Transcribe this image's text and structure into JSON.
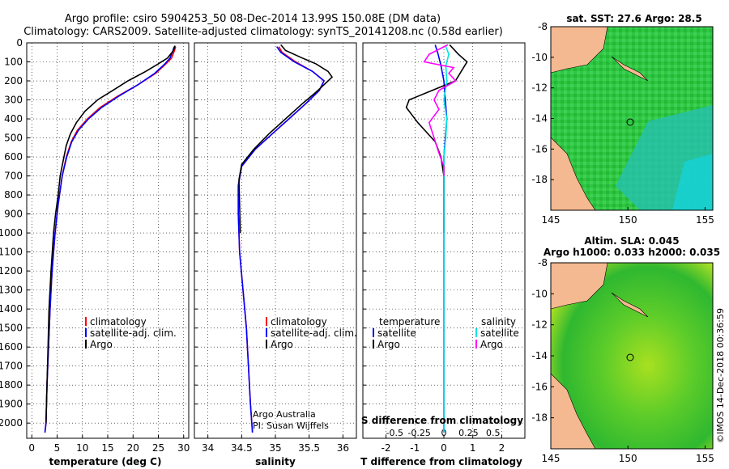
{
  "title": {
    "line1": "Argo profile: csiro 5904253_50 08-Dec-2014 13.99S 150.08E (DM data)",
    "line2": "Climatology: CARS2009. Satellite-adjusted climatology: synTS_20141208.nc (0.58d earlier)"
  },
  "colors": {
    "climatology": "#ff0000",
    "satellite": "#0000ff",
    "argo": "#000000",
    "s_satellite": "#00e5e5",
    "s_argo": "#ff00ff",
    "land": "#f4b990"
  },
  "chart_data": [
    {
      "type": "line",
      "id": "temperature",
      "xlabel": "temperature (deg C)",
      "ylabel": "",
      "xlim": [
        -1,
        31
      ],
      "ylim": [
        2080,
        0
      ],
      "xticks": [
        "0",
        "5",
        "10",
        "15",
        "20",
        "25",
        "30"
      ],
      "yticks": [
        "0",
        "100",
        "200",
        "300",
        "400",
        "500",
        "600",
        "700",
        "800",
        "900",
        "1000",
        "1100",
        "1200",
        "1300",
        "1400",
        "1500",
        "1600",
        "1700",
        "1800",
        "1900",
        "2000"
      ],
      "legend": [
        "climatology",
        "satellite-adj. clim.",
        "Argo"
      ],
      "series": [
        {
          "name": "climatology",
          "points": [
            [
              28.4,
              20
            ],
            [
              28.2,
              40
            ],
            [
              27.6,
              80
            ],
            [
              26.5,
              110
            ],
            [
              24.5,
              160
            ],
            [
              21,
              220
            ],
            [
              17,
              280
            ],
            [
              13.5,
              340
            ],
            [
              11,
              400
            ],
            [
              9,
              460
            ],
            [
              7.8,
              520
            ],
            [
              6.8,
              600
            ],
            [
              6,
              700
            ],
            [
              5.2,
              850
            ],
            [
              4.6,
              1000
            ],
            [
              4,
              1200
            ],
            [
              3.6,
              1400
            ],
            [
              3.3,
              1600
            ],
            [
              3,
              1800
            ],
            [
              2.8,
              2000
            ],
            [
              2.6,
              2050
            ]
          ]
        },
        {
          "name": "satellite-adj. clim.",
          "points": [
            [
              28.1,
              20
            ],
            [
              27.9,
              40
            ],
            [
              27.3,
              80
            ],
            [
              26.3,
              110
            ],
            [
              24.3,
              160
            ],
            [
              21,
              220
            ],
            [
              17.2,
              280
            ],
            [
              13.8,
              340
            ],
            [
              11.2,
              400
            ],
            [
              9.2,
              460
            ],
            [
              7.9,
              520
            ],
            [
              6.9,
              600
            ],
            [
              6,
              700
            ],
            [
              5.2,
              850
            ],
            [
              4.6,
              1000
            ],
            [
              4,
              1200
            ],
            [
              3.6,
              1400
            ],
            [
              3.3,
              1600
            ],
            [
              3,
              1800
            ],
            [
              2.8,
              2000
            ],
            [
              2.6,
              2050
            ]
          ]
        },
        {
          "name": "Argo",
          "points": [
            [
              28.3,
              15
            ],
            [
              28,
              40
            ],
            [
              26.8,
              80
            ],
            [
              25,
              110
            ],
            [
              22.5,
              150
            ],
            [
              19,
              200
            ],
            [
              16,
              250
            ],
            [
              13,
              300
            ],
            [
              10.5,
              360
            ],
            [
              8.8,
              420
            ],
            [
              7.6,
              480
            ],
            [
              6.8,
              540
            ],
            [
              6.2,
              620
            ],
            [
              5.6,
              700
            ],
            [
              5.2,
              800
            ],
            [
              4.7,
              900
            ],
            [
              4.3,
              1000
            ],
            [
              3.8,
              1200
            ],
            [
              3.4,
              1400
            ],
            [
              3.2,
              1600
            ],
            [
              3,
              1800
            ],
            [
              2.8,
              2000
            ]
          ]
        }
      ]
    },
    {
      "type": "line",
      "id": "salinity",
      "xlabel": "salinity",
      "ylabel": "",
      "xlim": [
        33.8,
        36.2
      ],
      "ylim": [
        2080,
        0
      ],
      "xticks": [
        "34",
        "34.5",
        "35",
        "35.5",
        "36"
      ],
      "legend": [
        "climatology",
        "satellite-adj. clim.",
        "Argo"
      ],
      "annotation": [
        "Argo Australia",
        "PI: Susan Wijffels"
      ],
      "series": [
        {
          "name": "climatology",
          "points": [
            [
              35.05,
              20
            ],
            [
              35.1,
              50
            ],
            [
              35.3,
              100
            ],
            [
              35.55,
              150
            ],
            [
              35.72,
              200
            ],
            [
              35.65,
              250
            ],
            [
              35.45,
              320
            ],
            [
              35.2,
              400
            ],
            [
              34.95,
              480
            ],
            [
              34.7,
              560
            ],
            [
              34.5,
              650
            ],
            [
              34.45,
              750
            ],
            [
              34.45,
              900
            ],
            [
              34.47,
              1100
            ],
            [
              34.52,
              1300
            ],
            [
              34.57,
              1500
            ],
            [
              34.6,
              1700
            ],
            [
              34.63,
              1900
            ],
            [
              34.66,
              2050
            ]
          ]
        },
        {
          "name": "satellite-adj. clim.",
          "points": [
            [
              35.02,
              20
            ],
            [
              35.08,
              50
            ],
            [
              35.28,
              100
            ],
            [
              35.55,
              150
            ],
            [
              35.72,
              200
            ],
            [
              35.65,
              250
            ],
            [
              35.45,
              320
            ],
            [
              35.2,
              400
            ],
            [
              34.95,
              480
            ],
            [
              34.7,
              560
            ],
            [
              34.5,
              650
            ],
            [
              34.45,
              750
            ],
            [
              34.45,
              900
            ],
            [
              34.47,
              1100
            ],
            [
              34.52,
              1300
            ],
            [
              34.57,
              1500
            ],
            [
              34.6,
              1700
            ],
            [
              34.63,
              1900
            ],
            [
              34.66,
              2050
            ]
          ]
        },
        {
          "name": "Argo",
          "points": [
            [
              35.08,
              10
            ],
            [
              35.15,
              40
            ],
            [
              35.4,
              80
            ],
            [
              35.6,
              110
            ],
            [
              35.78,
              150
            ],
            [
              35.84,
              180
            ],
            [
              35.75,
              210
            ],
            [
              35.6,
              260
            ],
            [
              35.4,
              320
            ],
            [
              35.15,
              400
            ],
            [
              34.9,
              480
            ],
            [
              34.68,
              560
            ],
            [
              34.5,
              640
            ],
            [
              34.46,
              720
            ],
            [
              34.47,
              850
            ],
            [
              34.48,
              1000
            ]
          ]
        }
      ]
    },
    {
      "type": "line",
      "id": "difference",
      "xlabel": "T difference from climatology",
      "xlabel2": "S difference from climatology",
      "xlim": [
        -2.8,
        2.8
      ],
      "ylim": [
        2080,
        0
      ],
      "xticks": [
        "-2",
        "-1",
        "0",
        "1",
        "2"
      ],
      "sticks": [
        "-0.5",
        "-0.25",
        "0",
        "0.25",
        "0.5"
      ],
      "legend_headers": [
        "temperature",
        "salinity"
      ],
      "legend_t": [
        "satellite",
        "Argo"
      ],
      "legend_s": [
        "satellite",
        "Argo"
      ],
      "series": [
        {
          "name": "T satellite",
          "points": [
            [
              -0.3,
              10
            ],
            [
              -0.2,
              60
            ],
            [
              -0.1,
              120
            ],
            [
              0,
              200
            ],
            [
              0.05,
              300
            ],
            [
              0.1,
              400
            ],
            [
              0.05,
              500
            ],
            [
              0,
              600
            ],
            [
              0,
              800
            ],
            [
              0,
              1000
            ],
            [
              0,
              1400
            ],
            [
              0,
              1800
            ],
            [
              0,
              2050
            ]
          ]
        },
        {
          "name": "T Argo",
          "points": [
            [
              0.2,
              10
            ],
            [
              0.5,
              60
            ],
            [
              0.8,
              100
            ],
            [
              0.6,
              150
            ],
            [
              0.4,
              200
            ],
            [
              -0.4,
              250
            ],
            [
              -1.2,
              300
            ],
            [
              -1.3,
              340
            ],
            [
              -1.1,
              380
            ],
            [
              -0.9,
              420
            ],
            [
              -0.6,
              470
            ],
            [
              -0.3,
              520
            ],
            [
              -0.1,
              600
            ],
            [
              0,
              700
            ],
            [
              0,
              800
            ],
            [
              0,
              900
            ],
            [
              0,
              1000
            ]
          ]
        },
        {
          "name": "S satellite",
          "points": [
            [
              0.02,
              20
            ],
            [
              0.05,
              60
            ],
            [
              0.02,
              120
            ],
            [
              0.03,
              200
            ],
            [
              0,
              300
            ],
            [
              0.03,
              400
            ],
            [
              0.02,
              500
            ],
            [
              0,
              600
            ],
            [
              0,
              800
            ],
            [
              0,
              1000
            ],
            [
              0,
              1400
            ],
            [
              0,
              1800
            ],
            [
              0,
              2050
            ]
          ]
        },
        {
          "name": "S Argo",
          "points": [
            [
              0.04,
              10
            ],
            [
              -0.15,
              60
            ],
            [
              -0.2,
              100
            ],
            [
              0.1,
              130
            ],
            [
              0.05,
              160
            ],
            [
              0.12,
              200
            ],
            [
              -0.05,
              250
            ],
            [
              -0.1,
              300
            ],
            [
              -0.05,
              350
            ],
            [
              -0.15,
              420
            ],
            [
              -0.1,
              500
            ],
            [
              -0.05,
              580
            ],
            [
              0,
              650
            ],
            [
              0,
              700
            ]
          ]
        }
      ]
    },
    {
      "type": "heatmap",
      "id": "sst-map",
      "title": "sat. SST: 27.6 Argo: 28.5",
      "xticks": [
        "145",
        "150",
        "155"
      ],
      "yticks": [
        "-8",
        "-10",
        "-12",
        "-14",
        "-16",
        "-18"
      ],
      "xlim": [
        145,
        155.5
      ],
      "ylim": [
        -20,
        -8
      ],
      "float_position": [
        150.08,
        -13.99
      ]
    },
    {
      "type": "heatmap",
      "id": "sla-map",
      "title": "Altim. SLA: 0.045",
      "subtitle": "Argo h1000: 0.033 h2000: 0.035",
      "xticks": [
        "145",
        "150",
        "155"
      ],
      "yticks": [
        "-8",
        "-10",
        "-12",
        "-14",
        "-16",
        "-18"
      ],
      "xlim": [
        145,
        155.5
      ],
      "ylim": [
        -20,
        -8
      ],
      "float_position": [
        150.08,
        -13.99
      ]
    }
  ],
  "footer": {
    "timestamp": "©IMOS 14-Dec-2018 00:36:59"
  }
}
